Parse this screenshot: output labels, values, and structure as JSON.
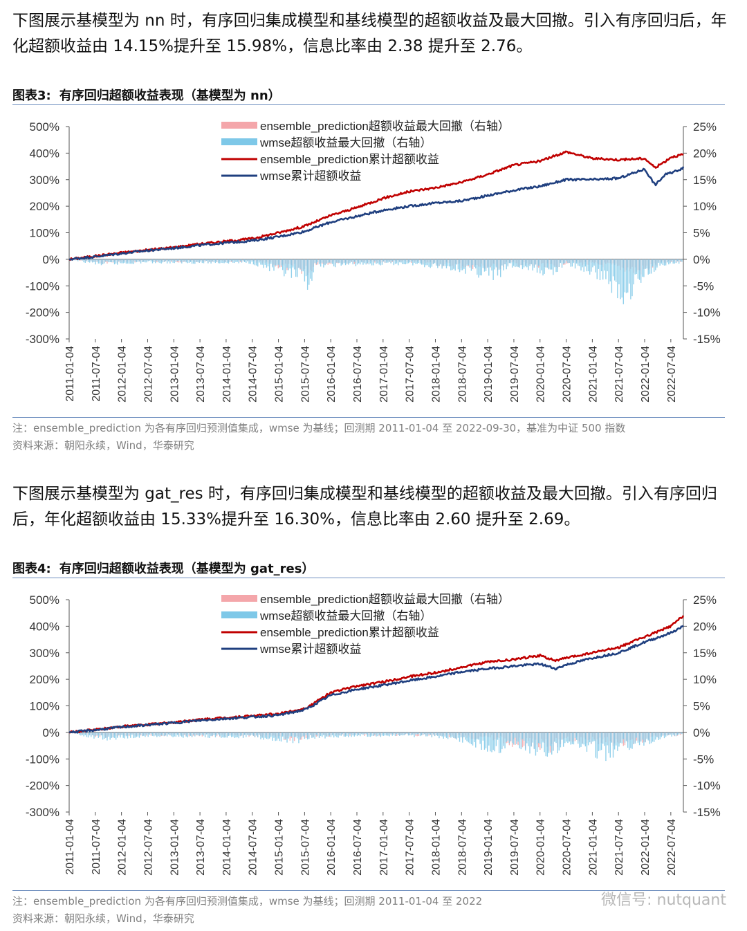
{
  "paragraph1": "下图展示基模型为 nn 时，有序回归集成模型和基线模型的超额收益及最大回撤。引入有序回归后，年化超额收益由 14.15%提升至 15.98%，信息比率由 2.38 提升至 2.76。",
  "figure3": {
    "label": "图表3:",
    "title": "有序回归超额收益表现（基模型为 nn）",
    "note": "注：ensemble_prediction 为各有序回归预测值集成，wmse 为基线；回测期 2011-01-04 至 2022-09-30，基准为中证 500 指数",
    "source": "资料来源：朝阳永续，Wind，华泰研究"
  },
  "paragraph2": "下图展示基模型为 gat_res 时，有序回归集成模型和基线模型的超额收益及最大回撤。引入有序回归后，年化超额收益由 15.33%提升至 16.30%，信息比率由 2.60 提升至 2.69。",
  "figure4": {
    "label": "图表4:",
    "title": "有序回归超额收益表现（基模型为 gat_res）",
    "note": "注：ensemble_prediction 为各有序回归预测值集成，wmse 为基线；回测期 2011-01-04 至 2022",
    "source": "资料来源：朝阳永续，Wind，华泰研究"
  },
  "watermark": "微信号: nutquant",
  "colors": {
    "ensemble_line": "#c00000",
    "wmse_line": "#1f3f7f",
    "ensemble_dd": "#f4a6aa",
    "wmse_dd": "#7ec8e8",
    "rule": "#6f8fbf"
  },
  "chart_data": [
    {
      "type": "line",
      "x_ticks": [
        "2011-01-04",
        "2011-07-04",
        "2012-01-04",
        "2012-07-04",
        "2013-01-04",
        "2013-07-04",
        "2014-01-04",
        "2014-07-04",
        "2015-01-04",
        "2015-07-04",
        "2016-01-04",
        "2016-07-04",
        "2017-01-04",
        "2017-07-04",
        "2018-01-04",
        "2018-07-04",
        "2019-01-04",
        "2019-07-04",
        "2020-01-04",
        "2020-07-04",
        "2021-01-04",
        "2021-07-04",
        "2022-01-04",
        "2022-07-04"
      ],
      "y_left_ticks": [
        "500%",
        "400%",
        "300%",
        "200%",
        "100%",
        "0%",
        "-100%",
        "-200%",
        "-300%"
      ],
      "y_right_ticks": [
        "25%",
        "20%",
        "15%",
        "10%",
        "5%",
        "0%",
        "-5%",
        "-10%",
        "-15%"
      ],
      "ylim_left": [
        -300,
        500
      ],
      "ylim_right": [
        -15,
        25
      ],
      "legend": [
        {
          "name": "ensemble_prediction超额收益最大回撤（右轴）",
          "kind": "area",
          "color": "#f4a6aa"
        },
        {
          "name": "wmse超额收益最大回撤（右轴）",
          "kind": "area",
          "color": "#7ec8e8"
        },
        {
          "name": "ensemble_prediction累计超额收益",
          "kind": "line",
          "color": "#c00000"
        },
        {
          "name": "wmse累计超额收益",
          "kind": "line",
          "color": "#1f3f7f"
        }
      ],
      "legend_position": "top-center",
      "series": [
        {
          "name": "ensemble_prediction累计超额收益",
          "axis": "left",
          "x": [
            0,
            0.5,
            1,
            1.5,
            2,
            2.5,
            3,
            3.5,
            4,
            4.5,
            5,
            5.5,
            6,
            6.5,
            7,
            7.5,
            8,
            8.5,
            9,
            9.5,
            10,
            10.5,
            11,
            11.2,
            11.4,
            11.5,
            11.74
          ],
          "values": [
            0,
            12,
            25,
            35,
            45,
            58,
            68,
            78,
            100,
            125,
            165,
            195,
            230,
            255,
            270,
            290,
            320,
            355,
            370,
            405,
            380,
            375,
            380,
            345,
            370,
            385,
            395
          ]
        },
        {
          "name": "wmse累计超额收益",
          "axis": "left",
          "x": [
            0,
            0.5,
            1,
            1.5,
            2,
            2.5,
            3,
            3.5,
            4,
            4.5,
            5,
            5.5,
            6,
            6.5,
            7,
            7.5,
            8,
            8.5,
            9,
            9.5,
            10,
            10.5,
            11,
            11.2,
            11.4,
            11.5,
            11.74
          ],
          "values": [
            0,
            10,
            22,
            33,
            42,
            53,
            62,
            70,
            85,
            105,
            140,
            162,
            185,
            200,
            212,
            220,
            240,
            260,
            275,
            300,
            300,
            305,
            340,
            280,
            320,
            325,
            345
          ]
        },
        {
          "name": "ensemble_prediction超额收益最大回撤（右轴）",
          "axis": "right",
          "x": [
            0,
            0.6,
            1.5,
            2.5,
            3.5,
            4.6,
            4.7,
            5.5,
            6.5,
            7.3,
            8.2,
            8.4,
            9.2,
            9.5,
            10.3,
            10.5,
            10.9,
            11.1,
            11.3,
            11.74
          ],
          "values": [
            0,
            -0.8,
            -0.5,
            -0.6,
            -0.5,
            -3,
            -1,
            -0.8,
            -0.6,
            -1.5,
            -2,
            -1,
            -2.2,
            -0.8,
            -1.5,
            -2,
            -3,
            -2,
            -1,
            -0.5
          ]
        },
        {
          "name": "wmse超额收益最大回撤（右轴）",
          "axis": "right",
          "x": [
            0,
            0.6,
            1.5,
            2.5,
            3.5,
            4.6,
            4.7,
            5.5,
            6.5,
            7.3,
            8.2,
            8.4,
            9.2,
            9.5,
            10.3,
            10.5,
            10.9,
            11.1,
            11.3,
            11.74
          ],
          "values": [
            0,
            -1.2,
            -0.7,
            -0.8,
            -0.8,
            -5.5,
            -1.5,
            -1.2,
            -1,
            -2,
            -4,
            -1.5,
            -3.2,
            -1,
            -4.5,
            -9.5,
            -5,
            -3,
            -1.2,
            -0.8
          ]
        }
      ]
    },
    {
      "type": "line",
      "x_ticks": [
        "2011-01-04",
        "2011-07-04",
        "2012-01-04",
        "2012-07-04",
        "2013-01-04",
        "2013-07-04",
        "2014-01-04",
        "2014-07-04",
        "2015-01-04",
        "2015-07-04",
        "2016-01-04",
        "2016-07-04",
        "2017-01-04",
        "2017-07-04",
        "2018-01-04",
        "2018-07-04",
        "2019-01-04",
        "2019-07-04",
        "2020-01-04",
        "2020-07-04",
        "2021-01-04",
        "2021-07-04",
        "2022-01-04",
        "2022-07-04"
      ],
      "y_left_ticks": [
        "500%",
        "400%",
        "300%",
        "200%",
        "100%",
        "0%",
        "-100%",
        "-200%",
        "-300%"
      ],
      "y_right_ticks": [
        "25%",
        "20%",
        "15%",
        "10%",
        "5%",
        "0%",
        "-5%",
        "-10%",
        "-15%"
      ],
      "ylim_left": [
        -300,
        500
      ],
      "ylim_right": [
        -15,
        25
      ],
      "legend": [
        {
          "name": "ensemble_prediction超额收益最大回撤（右轴）",
          "kind": "area",
          "color": "#f4a6aa"
        },
        {
          "name": "wmse超额收益最大回撤（右轴）",
          "kind": "area",
          "color": "#7ec8e8"
        },
        {
          "name": "ensemble_prediction累计超额收益",
          "kind": "line",
          "color": "#c00000"
        },
        {
          "name": "wmse累计超额收益",
          "kind": "line",
          "color": "#1f3f7f"
        }
      ],
      "legend_position": "top-center",
      "series": [
        {
          "name": "ensemble_prediction累计超额收益",
          "axis": "left",
          "x": [
            0,
            0.5,
            1,
            1.5,
            2,
            2.5,
            3,
            3.5,
            4,
            4.5,
            4.6,
            5,
            5.5,
            6,
            6.5,
            7,
            7.5,
            8,
            8.5,
            9,
            9.3,
            9.5,
            10,
            10.5,
            11,
            11.5,
            11.74
          ],
          "values": [
            0,
            10,
            22,
            30,
            38,
            48,
            55,
            62,
            70,
            90,
            100,
            150,
            175,
            190,
            210,
            225,
            245,
            265,
            275,
            290,
            270,
            280,
            300,
            320,
            360,
            400,
            440
          ]
        },
        {
          "name": "wmse累计超额收益",
          "axis": "left",
          "x": [
            0,
            0.5,
            1,
            1.5,
            2,
            2.5,
            3,
            3.5,
            4,
            4.5,
            4.6,
            5,
            5.5,
            6,
            6.5,
            7,
            7.5,
            8,
            8.5,
            9,
            9.3,
            9.5,
            10,
            10.5,
            11,
            11.5,
            11.74
          ],
          "values": [
            0,
            9,
            20,
            28,
            36,
            45,
            52,
            58,
            65,
            85,
            95,
            140,
            162,
            178,
            195,
            210,
            228,
            240,
            250,
            258,
            240,
            255,
            280,
            300,
            340,
            375,
            400
          ]
        },
        {
          "name": "ensemble_prediction超额收益最大回撤（右轴）",
          "axis": "right",
          "x": [
            0,
            0.6,
            1.5,
            2.5,
            3.5,
            4.3,
            4.6,
            5.5,
            6.5,
            7.3,
            8.2,
            8.4,
            9.2,
            9.5,
            10.3,
            10.6,
            11.1,
            11.4,
            11.74
          ],
          "values": [
            0,
            -1,
            -0.6,
            -0.8,
            -0.8,
            -1.5,
            -1,
            -0.6,
            -0.6,
            -1,
            -1.5,
            -2.5,
            -3.5,
            -1.5,
            -2.5,
            -3,
            -1.5,
            -0.8,
            -0.5
          ]
        },
        {
          "name": "wmse超额收益最大回撤（右轴）",
          "axis": "right",
          "x": [
            0,
            0.6,
            1.5,
            2.5,
            3.5,
            4.3,
            4.6,
            5.5,
            6.5,
            7.3,
            8.2,
            8.4,
            9.2,
            9.5,
            10.3,
            10.6,
            11.1,
            11.4,
            11.74
          ],
          "values": [
            0,
            -1.5,
            -0.8,
            -1,
            -1,
            -2.2,
            -1.2,
            -0.8,
            -0.8,
            -1.2,
            -4,
            -2.5,
            -5,
            -2,
            -5.5,
            -3.5,
            -2,
            -1,
            -0.5
          ]
        }
      ]
    }
  ]
}
